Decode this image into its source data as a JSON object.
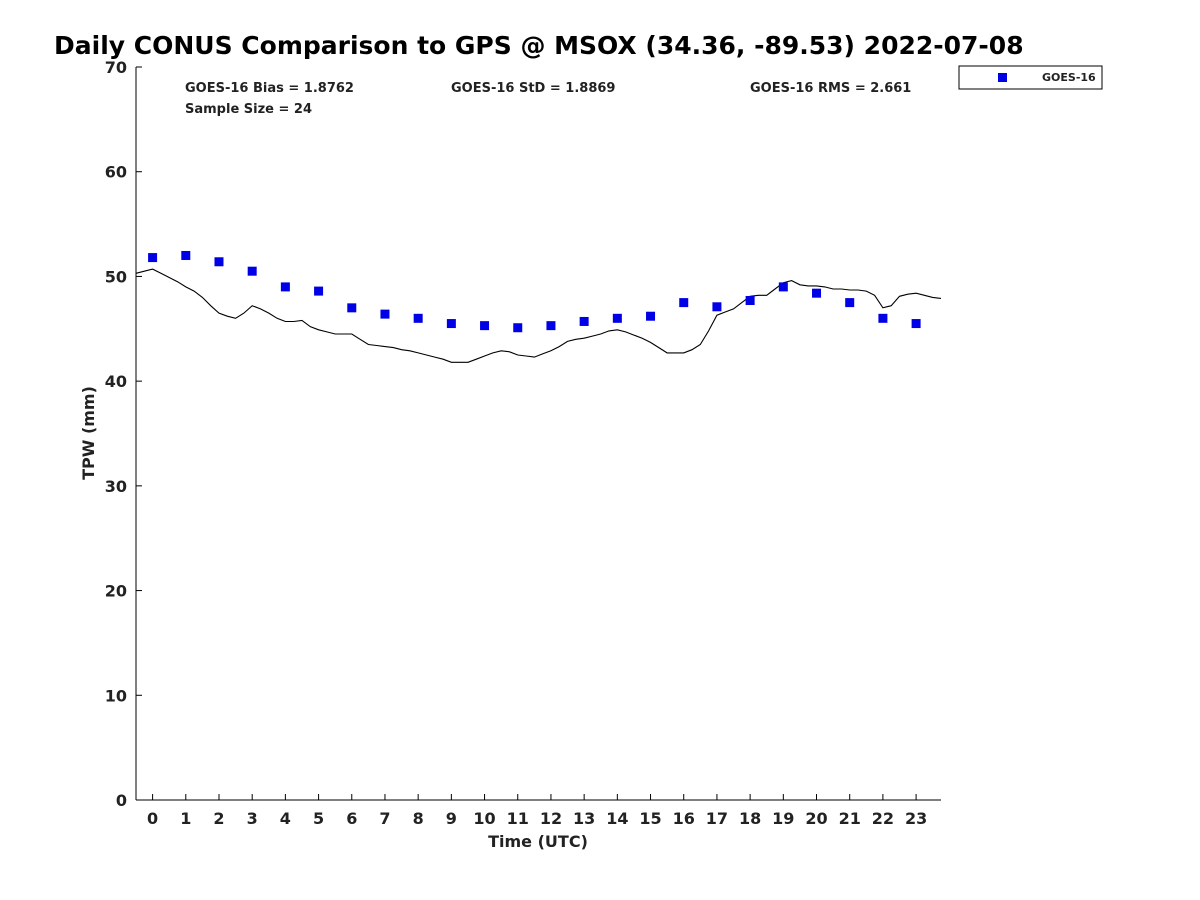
{
  "chart_data": {
    "type": "scatter",
    "title": "Daily CONUS Comparison to GPS @ MSOX (34.36, -89.53) 2022-07-08",
    "xlabel": "Time (UTC)",
    "ylabel": "TPW (mm)",
    "xlim": [
      -0.5,
      23.75
    ],
    "ylim": [
      0,
      70
    ],
    "x_ticks": [
      "0",
      "1",
      "2",
      "3",
      "4",
      "5",
      "6",
      "7",
      "8",
      "9",
      "10",
      "11",
      "12",
      "13",
      "14",
      "15",
      "16",
      "17",
      "18",
      "19",
      "20",
      "21",
      "22",
      "23"
    ],
    "y_ticks": [
      "0",
      "10",
      "20",
      "30",
      "40",
      "50",
      "60",
      "70"
    ],
    "grid": false,
    "legend_position": "top-right, outside plot",
    "stats": {
      "bias": "GOES-16 Bias = 1.8762",
      "std": "GOES-16 StD = 1.8869",
      "rms": "GOES-16 RMS = 2.661",
      "sample": "Sample Size = 24"
    },
    "series": [
      {
        "name": "GOES-16",
        "style": "square-marker",
        "color": "#0000e6",
        "x": [
          0,
          1,
          2,
          3,
          4,
          5,
          6,
          7,
          8,
          9,
          10,
          11,
          12,
          13,
          14,
          15,
          16,
          17,
          18,
          19,
          20,
          21,
          22,
          23
        ],
        "values": [
          51.8,
          52.0,
          51.4,
          50.5,
          49.0,
          48.6,
          47.0,
          46.4,
          46.0,
          45.5,
          45.3,
          45.1,
          45.3,
          45.7,
          46.0,
          46.2,
          47.5,
          47.1,
          47.7,
          49.0,
          48.4,
          47.5,
          46.0,
          45.5
        ]
      },
      {
        "style": "line",
        "color": "#000000",
        "x": [
          -0.5,
          -0.25,
          0,
          0.25,
          0.5,
          0.75,
          1,
          1.25,
          1.5,
          1.75,
          2,
          2.25,
          2.5,
          2.75,
          3,
          3.25,
          3.5,
          3.75,
          4,
          4.25,
          4.5,
          4.75,
          5,
          5.25,
          5.5,
          5.75,
          6,
          6.25,
          6.5,
          6.75,
          7,
          7.25,
          7.5,
          7.75,
          8,
          8.25,
          8.5,
          8.75,
          9,
          9.25,
          9.5,
          9.75,
          10,
          10.25,
          10.5,
          10.75,
          11,
          11.25,
          11.5,
          11.75,
          12,
          12.25,
          12.5,
          12.75,
          13,
          13.25,
          13.5,
          13.75,
          14,
          14.25,
          14.5,
          14.75,
          15,
          15.25,
          15.5,
          15.75,
          16,
          16.25,
          16.5,
          16.75,
          17,
          17.25,
          17.5,
          17.75,
          18,
          18.25,
          18.5,
          18.75,
          19,
          19.25,
          19.5,
          19.75,
          20,
          20.25,
          20.5,
          20.75,
          21,
          21.25,
          21.5,
          21.75,
          22,
          22.25,
          22.5,
          22.75,
          23,
          23.25,
          23.5,
          23.75
        ],
        "values": [
          50.3,
          50.5,
          50.7,
          50.3,
          49.9,
          49.5,
          49.0,
          48.6,
          48.0,
          47.2,
          46.5,
          46.2,
          46.0,
          46.5,
          47.2,
          46.9,
          46.5,
          46.0,
          45.7,
          45.7,
          45.8,
          45.2,
          44.9,
          44.7,
          44.5,
          44.5,
          44.5,
          44.0,
          43.5,
          43.4,
          43.3,
          43.2,
          43.0,
          42.9,
          42.7,
          42.5,
          42.3,
          42.1,
          41.8,
          41.8,
          41.8,
          42.1,
          42.4,
          42.7,
          42.9,
          42.8,
          42.5,
          42.4,
          42.3,
          42.6,
          42.9,
          43.3,
          43.8,
          44.0,
          44.1,
          44.3,
          44.5,
          44.8,
          44.9,
          44.7,
          44.4,
          44.1,
          43.7,
          43.2,
          42.7,
          42.7,
          42.7,
          43.0,
          43.5,
          44.8,
          46.3,
          46.6,
          46.9,
          47.5,
          48.1,
          48.2,
          48.2,
          48.8,
          49.4,
          49.6,
          49.2,
          49.1,
          49.1,
          49.0,
          48.8,
          48.8,
          48.7,
          48.7,
          48.6,
          48.2,
          47.0,
          47.2,
          48.1,
          48.3,
          48.4,
          48.2,
          48.0,
          47.9
        ]
      }
    ]
  }
}
